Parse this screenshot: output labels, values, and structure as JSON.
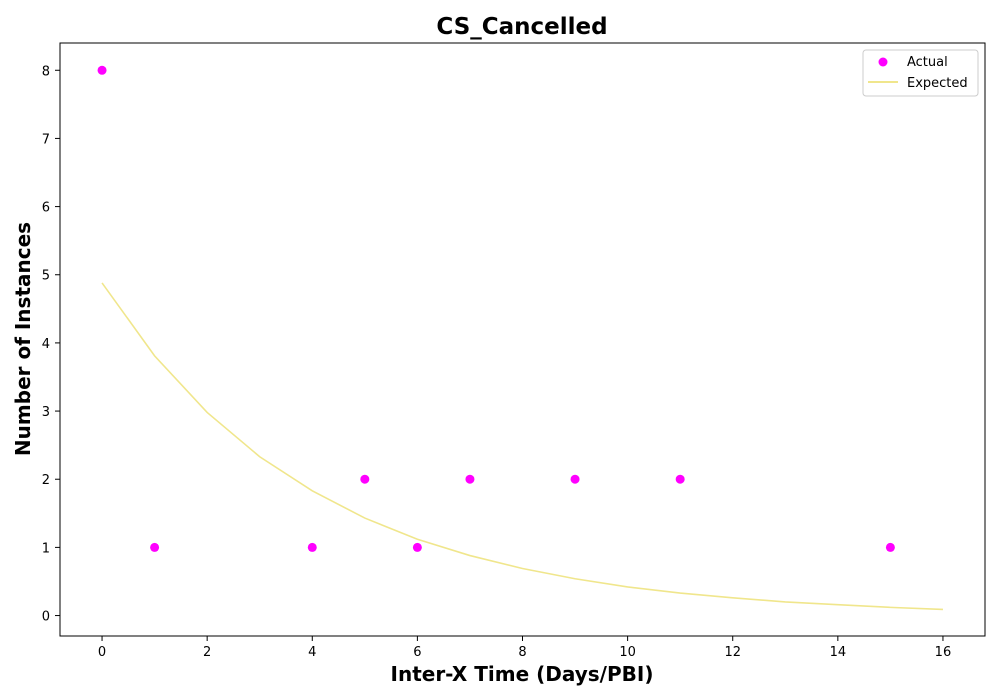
{
  "chart_data": {
    "type": "scatter",
    "title": "CS_Cancelled",
    "xlabel": "Inter-X Time (Days/PBI)",
    "ylabel": "Number of Instances",
    "xlim": [
      -0.8,
      16.8
    ],
    "ylim": [
      -0.3,
      8.4
    ],
    "xticks": [
      0,
      2,
      4,
      6,
      8,
      10,
      12,
      14,
      16
    ],
    "yticks": [
      0,
      1,
      2,
      3,
      4,
      5,
      6,
      7,
      8
    ],
    "grid": false,
    "legend_position": "top-right",
    "series": [
      {
        "name": "Actual",
        "kind": "scatter",
        "color": "#ff00ff",
        "x": [
          0,
          1,
          4,
          5,
          6,
          7,
          9,
          11,
          15
        ],
        "y": [
          8,
          1,
          1,
          2,
          1,
          2,
          2,
          2,
          1
        ]
      },
      {
        "name": "Expected",
        "kind": "line",
        "color": "#f0e68c",
        "x": [
          0,
          1,
          2,
          3,
          4,
          5,
          6,
          7,
          8,
          9,
          10,
          11,
          12,
          13,
          14,
          15,
          16
        ],
        "y": [
          4.88,
          3.81,
          2.98,
          2.33,
          1.83,
          1.43,
          1.12,
          0.88,
          0.69,
          0.54,
          0.42,
          0.33,
          0.26,
          0.2,
          0.16,
          0.12,
          0.09
        ]
      }
    ]
  }
}
